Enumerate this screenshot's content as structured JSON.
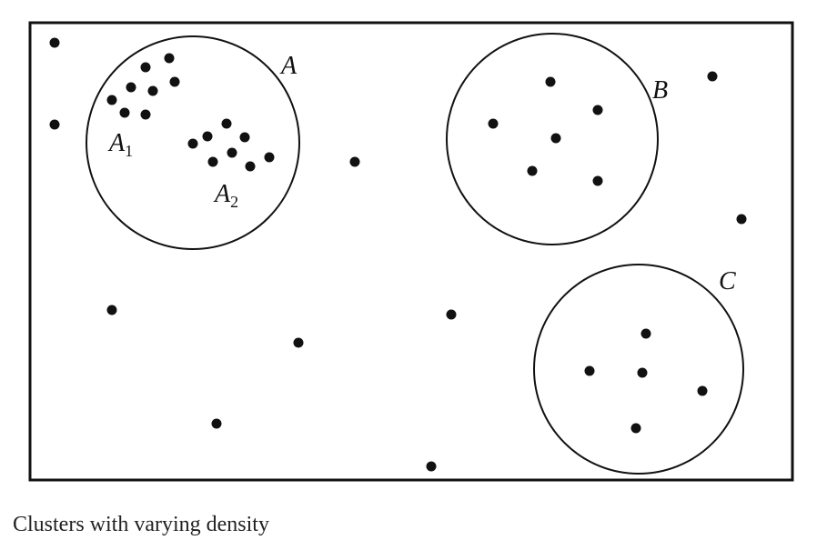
{
  "labels": {
    "A": "A",
    "A1": {
      "main": "A",
      "sub": "1"
    },
    "A2": {
      "main": "A",
      "sub": "2"
    },
    "B": "B",
    "C": "C"
  },
  "caption": "Clusters with varying density",
  "colors": {
    "ink": "#111111",
    "background": "#ffffff"
  }
}
